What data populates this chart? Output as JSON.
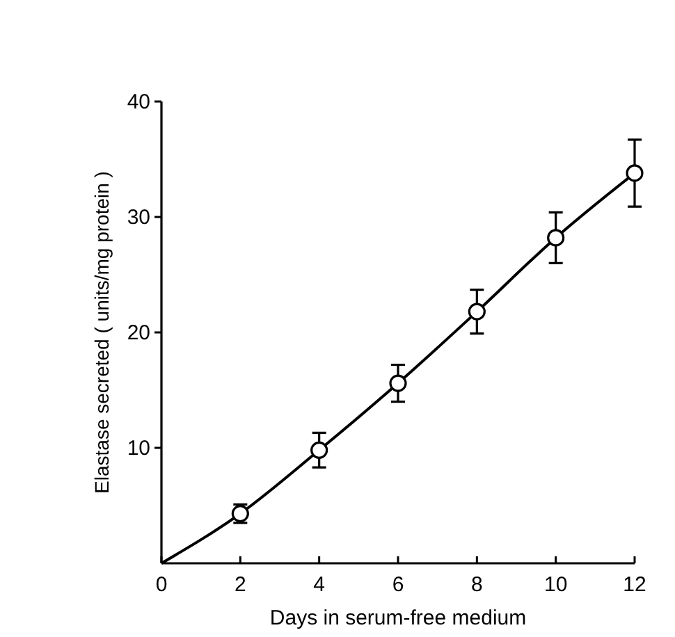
{
  "chart_data": {
    "type": "scatter",
    "xlabel": "Days in serum-free medium",
    "ylabel": "Elastase secreted ( units/mg protein )",
    "xlim": [
      0,
      12
    ],
    "xticks": [
      0,
      2,
      4,
      6,
      8,
      10,
      12
    ],
    "ylim": [
      0,
      40
    ],
    "yticks": [
      10,
      20,
      30,
      40
    ],
    "series": [
      {
        "type": "line",
        "color": "#000000",
        "marker": "none",
        "x": [
          0,
          2,
          4,
          6,
          8,
          10,
          12
        ],
        "values": [
          0,
          4.3,
          9.8,
          15.6,
          21.8,
          28.2,
          33.8
        ]
      },
      {
        "color": "#000000",
        "marker": "circle",
        "x": [
          2,
          4,
          6,
          8,
          10,
          12
        ],
        "values": [
          4.3,
          9.8,
          15.6,
          21.8,
          28.2,
          33.8
        ],
        "errors": [
          0.8,
          1.5,
          1.6,
          1.9,
          2.2,
          2.9
        ]
      }
    ]
  }
}
